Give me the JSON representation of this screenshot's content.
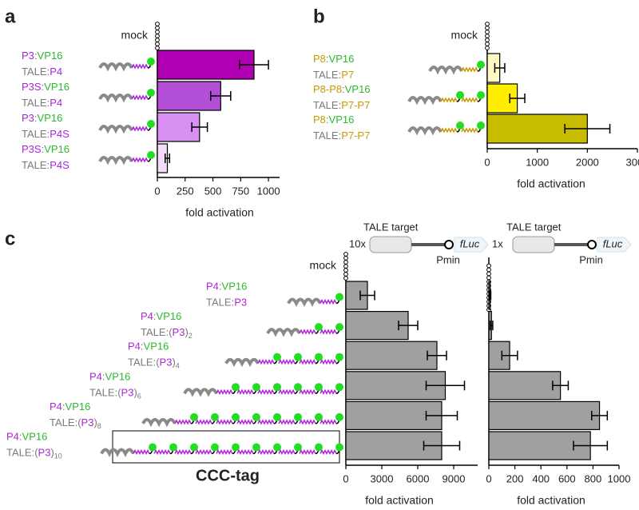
{
  "chart_data": [
    {
      "type": "bar",
      "orientation": "horizontal",
      "panel": "a",
      "mock_label": "mock",
      "x_label": "fold activation",
      "categories": [
        [
          "P3:VP16",
          "TALE:P4"
        ],
        [
          "P3S:VP16",
          "TALE:P4"
        ],
        [
          "P3:VP16",
          "TALE:P4S"
        ],
        [
          "P3S:VP16",
          "TALE:P4S"
        ]
      ],
      "mock_value": 0,
      "values": [
        870,
        570,
        380,
        90
      ],
      "errors": [
        130,
        90,
        70,
        20
      ],
      "colors": [
        "#b000b4",
        "#b24fd6",
        "#d890f2",
        "#f3dcfa"
      ],
      "peptide_color": "#a626d8",
      "xlim": [
        0,
        1100
      ],
      "xticks": [
        0,
        250,
        500,
        750,
        1000
      ]
    },
    {
      "type": "bar",
      "orientation": "horizontal",
      "panel": "b",
      "mock_label": "mock",
      "x_label": "fold activation",
      "categories": [
        [
          "P8:VP16",
          "TALE:P7"
        ],
        [
          "P8-P8:VP16",
          "TALE:P7-P7"
        ],
        [
          "P8:VP16",
          "TALE:P7-P7"
        ]
      ],
      "mock_value": 0,
      "values": [
        250,
        600,
        2000
      ],
      "errors": [
        100,
        150,
        450
      ],
      "colors": [
        "#fff7c4",
        "#ffee00",
        "#c8bc00"
      ],
      "peptide_color": "#c89b00",
      "xlim": [
        0,
        3000
      ],
      "xticks": [
        0,
        1000,
        2000,
        3000
      ]
    },
    {
      "type": "bar",
      "orientation": "horizontal",
      "panel": "c",
      "mock_label": "mock",
      "x_label": "fold activation",
      "tag_label": "CCC-tag",
      "construct_label": "TALE target",
      "copies": "10x",
      "promoter": "Pmin",
      "reporter": "fLuc",
      "categories": [
        [
          "P4:VP16",
          "TALE:P3"
        ],
        [
          "P4:VP16",
          "TALE:(P3)2"
        ],
        [
          "P4:VP16",
          "TALE:(P3)4"
        ],
        [
          "P4:VP16",
          "TALE:(P3)6"
        ],
        [
          "P4:VP16",
          "TALE:(P3)8"
        ],
        [
          "P4:VP16",
          "TALE:(P3)10"
        ]
      ],
      "mock_value": 0,
      "values": [
        1800,
        5200,
        7600,
        8300,
        8000,
        8000
      ],
      "errors": [
        600,
        800,
        800,
        1600,
        1300,
        1500
      ],
      "colors": [
        "#a0a0a0",
        "#a0a0a0",
        "#a0a0a0",
        "#a0a0a0",
        "#a0a0a0",
        "#a0a0a0"
      ],
      "peptide_color": "#b025d8",
      "xlim": [
        0,
        11000
      ],
      "xticks": [
        0,
        3000,
        6000,
        9000
      ]
    },
    {
      "type": "bar",
      "orientation": "horizontal",
      "x_label": "fold activation",
      "construct_label": "TALE target",
      "copies": "1x",
      "promoter": "Pmin",
      "reporter": "fLuc",
      "mock_value": 0,
      "values": [
        10,
        20,
        160,
        550,
        850,
        780
      ],
      "errors": [
        5,
        10,
        60,
        60,
        60,
        130
      ],
      "colors": [
        "#a0a0a0",
        "#a0a0a0",
        "#a0a0a0",
        "#a0a0a0",
        "#a0a0a0",
        "#a0a0a0"
      ],
      "xlim": [
        0,
        1000
      ],
      "xticks": [
        0,
        200,
        400,
        600,
        800,
        1000
      ]
    }
  ]
}
